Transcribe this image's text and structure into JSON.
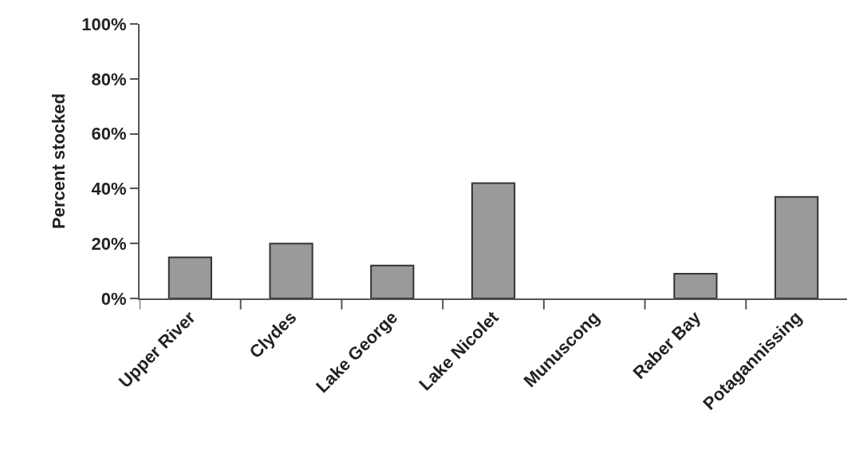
{
  "chart_data": {
    "type": "bar",
    "ylabel": "Percent stocked",
    "categories": [
      "Upper River",
      "Clydes",
      "Lake George",
      "Lake Nicolet",
      "Munuscong",
      "Raber Bay",
      "Potagannissing"
    ],
    "values": [
      15,
      20,
      12,
      42,
      0,
      9,
      37
    ],
    "color": "#9a9a9c",
    "ylim": [
      0,
      100
    ],
    "yticks": [
      {
        "value": 0,
        "label": "0%"
      },
      {
        "value": 20,
        "label": "20%"
      },
      {
        "value": 40,
        "label": "40%"
      },
      {
        "value": 60,
        "label": "60%"
      },
      {
        "value": 80,
        "label": "80%"
      },
      {
        "value": 100,
        "label": "100%"
      }
    ],
    "grid": false
  }
}
